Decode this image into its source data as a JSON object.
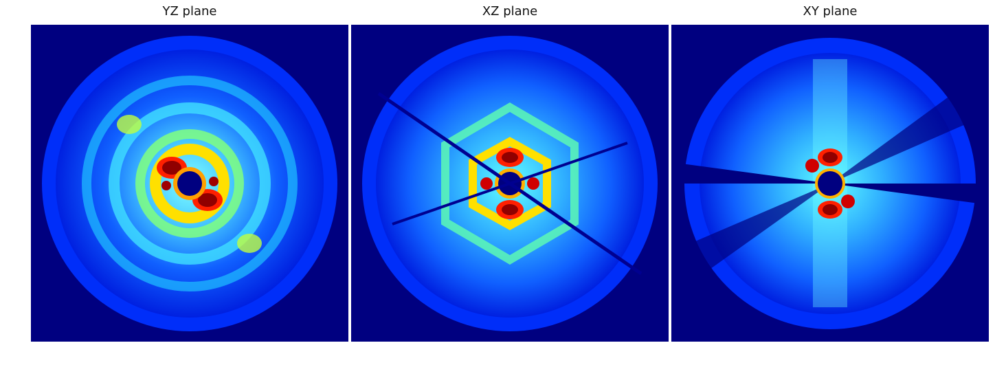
{
  "panels": [
    {
      "title": "YZ plane",
      "style": "rings"
    },
    {
      "title": "XZ plane",
      "style": "hex"
    },
    {
      "title": "XY plane",
      "style": "rays"
    }
  ],
  "colors": {
    "background": "#000080",
    "jet_blue": "#0000ff",
    "jet_azure": "#0080ff",
    "jet_cyan": "#00ffff",
    "jet_yellow": "#ffff00",
    "jet_red": "#ff0000",
    "jet_darkred": "#800000"
  }
}
